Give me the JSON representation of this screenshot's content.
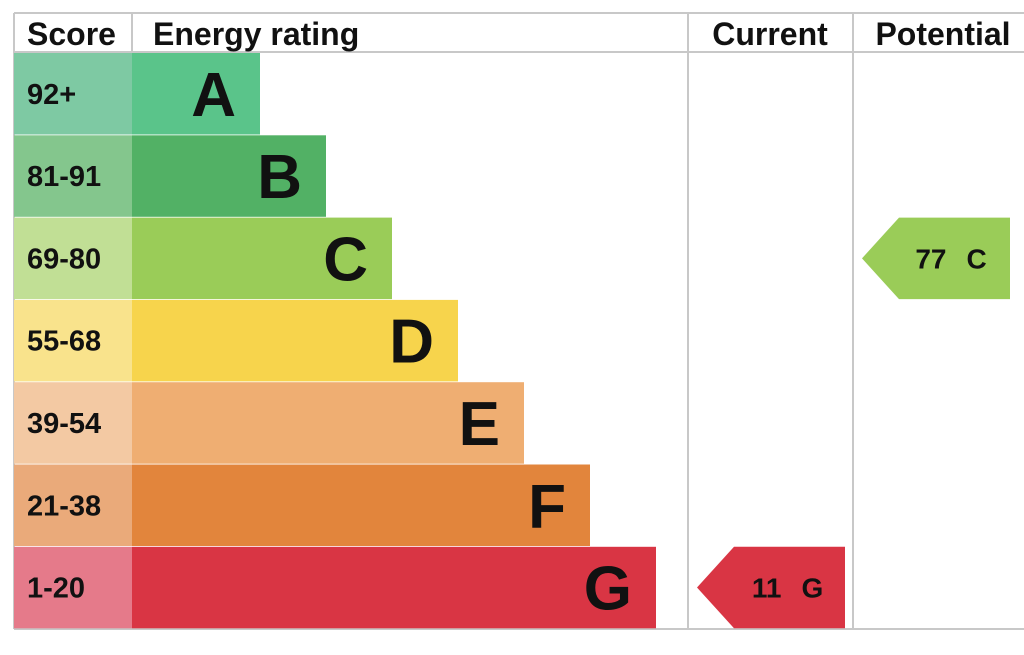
{
  "chart_data": {
    "type": "bar",
    "headers": {
      "score": "Score",
      "rating": "Energy rating",
      "current": "Current",
      "potential": "Potential"
    },
    "bands": [
      {
        "score": "92+",
        "letter": "A",
        "color": "#5ac48a",
        "score_bg": "#7ec9a3"
      },
      {
        "score": "81-91",
        "letter": "B",
        "color": "#52b165",
        "score_bg": "#84c68d"
      },
      {
        "score": "69-80",
        "letter": "C",
        "color": "#9acc58",
        "score_bg": "#c1df95"
      },
      {
        "score": "55-68",
        "letter": "D",
        "color": "#f7d44c",
        "score_bg": "#f9e38c"
      },
      {
        "score": "39-54",
        "letter": "E",
        "color": "#efae72",
        "score_bg": "#f3c9a3"
      },
      {
        "score": "21-38",
        "letter": "F",
        "color": "#e2853c",
        "score_bg": "#eaaa7a"
      },
      {
        "score": "1-20",
        "letter": "G",
        "color": "#d93544",
        "score_bg": "#e57a8a"
      }
    ],
    "current": {
      "value": "11",
      "letter": "G",
      "color": "#d93544"
    },
    "potential": {
      "value": "77",
      "letter": "C",
      "color": "#9acc58"
    }
  }
}
